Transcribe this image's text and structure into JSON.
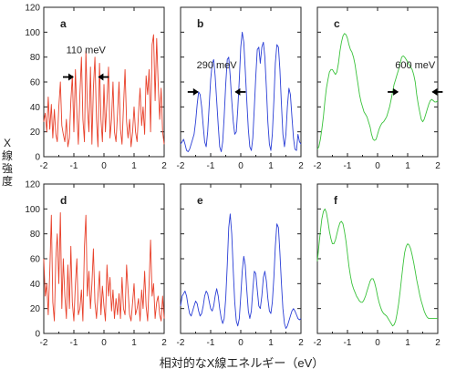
{
  "y_axis_label": "X線強度",
  "x_axis_label": "相対的なX線エネルギー（eV）",
  "colors": {
    "red": "#e8402a",
    "blue": "#2b3fd6",
    "green": "#39c23a",
    "axis": "#222222",
    "arrow": "#000000"
  },
  "chart_data": [
    {
      "panel": "a",
      "type": "line",
      "color": "red",
      "xlim": [
        -2,
        2
      ],
      "ylim": [
        0,
        120
      ],
      "xticks": [
        -2,
        -1,
        0,
        1,
        2
      ],
      "yticks": [
        0,
        20,
        40,
        60,
        80,
        100,
        120
      ],
      "annotation": {
        "text": "110 meV",
        "arrows_at": [
          -1.0,
          -0.2
        ],
        "arrow_y": 64
      },
      "x": [
        -2.0,
        -1.95,
        -1.9,
        -1.85,
        -1.8,
        -1.75,
        -1.7,
        -1.65,
        -1.6,
        -1.55,
        -1.5,
        -1.45,
        -1.4,
        -1.35,
        -1.3,
        -1.25,
        -1.2,
        -1.15,
        -1.1,
        -1.05,
        -1.0,
        -0.95,
        -0.9,
        -0.85,
        -0.8,
        -0.75,
        -0.7,
        -0.65,
        -0.6,
        -0.55,
        -0.5,
        -0.45,
        -0.4,
        -0.35,
        -0.3,
        -0.25,
        -0.2,
        -0.15,
        -0.1,
        -0.05,
        0.0,
        0.05,
        0.1,
        0.15,
        0.2,
        0.25,
        0.3,
        0.35,
        0.4,
        0.45,
        0.5,
        0.55,
        0.6,
        0.65,
        0.7,
        0.75,
        0.8,
        0.85,
        0.9,
        0.95,
        1.0,
        1.05,
        1.1,
        1.15,
        1.2,
        1.25,
        1.3,
        1.35,
        1.4,
        1.45,
        1.5,
        1.55,
        1.6,
        1.65,
        1.7,
        1.75,
        1.8,
        1.85,
        1.9,
        1.95,
        2.0
      ],
      "y": [
        28,
        35,
        20,
        48,
        22,
        42,
        15,
        38,
        18,
        12,
        40,
        60,
        25,
        18,
        12,
        30,
        8,
        15,
        45,
        65,
        20,
        70,
        35,
        10,
        50,
        80,
        30,
        12,
        85,
        40,
        20,
        72,
        10,
        55,
        80,
        30,
        8,
        75,
        30,
        12,
        58,
        20,
        45,
        72,
        15,
        30,
        60,
        20,
        12,
        35,
        60,
        22,
        10,
        40,
        70,
        28,
        15,
        30,
        8,
        20,
        40,
        20,
        12,
        35,
        55,
        25,
        40,
        18,
        65,
        50,
        70,
        20,
        90,
        98,
        45,
        95,
        60,
        30,
        55,
        20,
        10
      ]
    },
    {
      "panel": "b",
      "type": "line",
      "color": "blue",
      "xlim": [
        -2,
        2
      ],
      "ylim": [
        0,
        120
      ],
      "xticks": [
        -2,
        -1,
        0,
        1,
        2
      ],
      "yticks": [
        0,
        20,
        40,
        60,
        80,
        100,
        120
      ],
      "annotation": {
        "text": "290 meV",
        "arrows_at": [
          -1.4,
          -0.2
        ],
        "arrow_y": 52
      },
      "x": [
        -2.0,
        -1.95,
        -1.9,
        -1.85,
        -1.8,
        -1.75,
        -1.7,
        -1.65,
        -1.6,
        -1.55,
        -1.5,
        -1.45,
        -1.4,
        -1.35,
        -1.3,
        -1.25,
        -1.2,
        -1.15,
        -1.1,
        -1.05,
        -1.0,
        -0.95,
        -0.9,
        -0.85,
        -0.8,
        -0.75,
        -0.7,
        -0.65,
        -0.6,
        -0.55,
        -0.5,
        -0.45,
        -0.4,
        -0.35,
        -0.3,
        -0.25,
        -0.2,
        -0.15,
        -0.1,
        -0.05,
        0.0,
        0.05,
        0.1,
        0.15,
        0.2,
        0.25,
        0.3,
        0.35,
        0.4,
        0.45,
        0.5,
        0.55,
        0.6,
        0.65,
        0.7,
        0.75,
        0.8,
        0.85,
        0.9,
        0.95,
        1.0,
        1.05,
        1.1,
        1.15,
        1.2,
        1.25,
        1.3,
        1.35,
        1.4,
        1.45,
        1.5,
        1.55,
        1.6,
        1.65,
        1.7,
        1.75,
        1.8,
        1.85,
        1.9,
        1.95,
        2.0
      ],
      "y": [
        10,
        12,
        14,
        10,
        5,
        4,
        6,
        10,
        14,
        18,
        28,
        42,
        52,
        50,
        40,
        25,
        12,
        8,
        20,
        40,
        62,
        75,
        78,
        65,
        45,
        25,
        8,
        4,
        12,
        32,
        58,
        78,
        80,
        65,
        45,
        28,
        18,
        20,
        38,
        62,
        88,
        100,
        92,
        70,
        45,
        22,
        8,
        5,
        15,
        40,
        65,
        86,
        88,
        75,
        88,
        92,
        80,
        55,
        28,
        10,
        5,
        18,
        45,
        75,
        90,
        88,
        70,
        42,
        18,
        8,
        18,
        40,
        55,
        50,
        32,
        15,
        6,
        5,
        18,
        12,
        10
      ]
    },
    {
      "panel": "c",
      "type": "line",
      "color": "green",
      "xlim": [
        -2,
        2
      ],
      "ylim": [
        0,
        120
      ],
      "xticks": [
        -2,
        -1,
        0,
        1,
        2
      ],
      "yticks": [
        0,
        20,
        40,
        60,
        80,
        100,
        120
      ],
      "annotation": {
        "text": "600 meV",
        "arrows_at": [
          0.7,
          1.8
        ],
        "arrow_y": 52
      },
      "x": [
        -2.0,
        -1.95,
        -1.9,
        -1.85,
        -1.8,
        -1.75,
        -1.7,
        -1.65,
        -1.6,
        -1.55,
        -1.5,
        -1.45,
        -1.4,
        -1.35,
        -1.3,
        -1.25,
        -1.2,
        -1.15,
        -1.1,
        -1.05,
        -1.0,
        -0.95,
        -0.9,
        -0.85,
        -0.8,
        -0.75,
        -0.7,
        -0.65,
        -0.6,
        -0.55,
        -0.5,
        -0.45,
        -0.4,
        -0.35,
        -0.3,
        -0.25,
        -0.2,
        -0.15,
        -0.1,
        -0.05,
        0.0,
        0.05,
        0.1,
        0.15,
        0.2,
        0.25,
        0.3,
        0.35,
        0.4,
        0.45,
        0.5,
        0.55,
        0.6,
        0.65,
        0.7,
        0.75,
        0.8,
        0.85,
        0.9,
        0.95,
        1.0,
        1.05,
        1.1,
        1.15,
        1.2,
        1.25,
        1.3,
        1.35,
        1.4,
        1.45,
        1.5,
        1.55,
        1.6,
        1.65,
        1.7,
        1.75,
        1.8,
        1.85,
        1.9,
        1.95,
        2.0
      ],
      "y": [
        6,
        8,
        14,
        22,
        32,
        45,
        55,
        62,
        68,
        70,
        70,
        68,
        66,
        68,
        75,
        85,
        92,
        97,
        99,
        98,
        95,
        90,
        86,
        84,
        80,
        74,
        66,
        58,
        50,
        44,
        40,
        36,
        34,
        32,
        28,
        24,
        18,
        14,
        13,
        14,
        18,
        22,
        25,
        27,
        28,
        30,
        32,
        36,
        40,
        46,
        52,
        58,
        62,
        66,
        70,
        75,
        80,
        81,
        80,
        78,
        76,
        74,
        72,
        70,
        66,
        60,
        50,
        42,
        36,
        30,
        28,
        30,
        34,
        38,
        42,
        45,
        46,
        45,
        44,
        44,
        45
      ]
    },
    {
      "panel": "d",
      "type": "line",
      "color": "red",
      "xlim": [
        -2,
        2
      ],
      "ylim": [
        0,
        120
      ],
      "xticks": [
        -2,
        -1,
        0,
        1,
        2
      ],
      "yticks": [
        0,
        20,
        40,
        60,
        80,
        100,
        120
      ],
      "x": [
        -2.0,
        -1.95,
        -1.9,
        -1.85,
        -1.8,
        -1.75,
        -1.7,
        -1.65,
        -1.6,
        -1.55,
        -1.5,
        -1.45,
        -1.4,
        -1.35,
        -1.3,
        -1.25,
        -1.2,
        -1.15,
        -1.1,
        -1.05,
        -1.0,
        -0.95,
        -0.9,
        -0.85,
        -0.8,
        -0.75,
        -0.7,
        -0.65,
        -0.6,
        -0.55,
        -0.5,
        -0.45,
        -0.4,
        -0.35,
        -0.3,
        -0.25,
        -0.2,
        -0.15,
        -0.1,
        -0.05,
        0.0,
        0.05,
        0.1,
        0.15,
        0.2,
        0.25,
        0.3,
        0.35,
        0.4,
        0.45,
        0.5,
        0.55,
        0.6,
        0.65,
        0.7,
        0.75,
        0.8,
        0.85,
        0.9,
        0.95,
        1.0,
        1.05,
        1.1,
        1.15,
        1.2,
        1.25,
        1.3,
        1.35,
        1.4,
        1.45,
        1.5,
        1.55,
        1.6,
        1.65,
        1.7,
        1.75,
        1.8,
        1.85,
        1.9,
        1.95,
        2.0
      ],
      "y": [
        60,
        30,
        40,
        15,
        50,
        95,
        25,
        10,
        60,
        80,
        40,
        97,
        20,
        60,
        30,
        12,
        55,
        20,
        70,
        25,
        10,
        40,
        60,
        15,
        20,
        35,
        10,
        70,
        95,
        30,
        50,
        20,
        40,
        68,
        25,
        12,
        30,
        50,
        15,
        38,
        22,
        10,
        55,
        30,
        45,
        18,
        35,
        12,
        28,
        15,
        32,
        12,
        45,
        20,
        15,
        55,
        35,
        15,
        10,
        25,
        40,
        15,
        20,
        28,
        10,
        35,
        20,
        50,
        22,
        10,
        40,
        75,
        30,
        40,
        12,
        25,
        30,
        15,
        10,
        30,
        12
      ]
    },
    {
      "panel": "e",
      "type": "line",
      "color": "blue",
      "xlim": [
        -2,
        2
      ],
      "ylim": [
        0,
        120
      ],
      "xticks": [
        -2,
        -1,
        0,
        1,
        2
      ],
      "yticks": [
        0,
        20,
        40,
        60,
        80,
        100,
        120
      ],
      "x": [
        -2.0,
        -1.95,
        -1.9,
        -1.85,
        -1.8,
        -1.75,
        -1.7,
        -1.65,
        -1.6,
        -1.55,
        -1.5,
        -1.45,
        -1.4,
        -1.35,
        -1.3,
        -1.25,
        -1.2,
        -1.15,
        -1.1,
        -1.05,
        -1.0,
        -0.95,
        -0.9,
        -0.85,
        -0.8,
        -0.75,
        -0.7,
        -0.65,
        -0.6,
        -0.55,
        -0.5,
        -0.45,
        -0.4,
        -0.35,
        -0.3,
        -0.25,
        -0.2,
        -0.15,
        -0.1,
        -0.05,
        0.0,
        0.05,
        0.1,
        0.15,
        0.2,
        0.25,
        0.3,
        0.35,
        0.4,
        0.45,
        0.5,
        0.55,
        0.6,
        0.65,
        0.7,
        0.75,
        0.8,
        0.85,
        0.9,
        0.95,
        1.0,
        1.05,
        1.1,
        1.15,
        1.2,
        1.25,
        1.3,
        1.35,
        1.4,
        1.45,
        1.5,
        1.55,
        1.6,
        1.65,
        1.7,
        1.75,
        1.8,
        1.85,
        1.9,
        1.95,
        2.0
      ],
      "y": [
        22,
        30,
        32,
        34,
        30,
        22,
        16,
        14,
        18,
        22,
        26,
        24,
        18,
        14,
        16,
        22,
        30,
        34,
        32,
        26,
        20,
        18,
        22,
        30,
        36,
        30,
        20,
        12,
        8,
        12,
        28,
        55,
        85,
        96,
        80,
        50,
        25,
        10,
        6,
        12,
        30,
        50,
        62,
        55,
        35,
        18,
        12,
        18,
        35,
        50,
        48,
        35,
        22,
        20,
        30,
        45,
        50,
        42,
        28,
        18,
        16,
        25,
        45,
        70,
        88,
        85,
        65,
        40,
        20,
        8,
        4,
        6,
        10,
        14,
        18,
        20,
        18,
        15,
        12,
        11,
        12
      ]
    },
    {
      "panel": "f",
      "type": "line",
      "color": "green",
      "xlim": [
        -2,
        2
      ],
      "ylim": [
        0,
        120
      ],
      "xticks": [
        -2,
        -1,
        0,
        1,
        2
      ],
      "yticks": [
        0,
        20,
        40,
        60,
        80,
        100,
        120
      ],
      "x": [
        -2.0,
        -1.95,
        -1.9,
        -1.85,
        -1.8,
        -1.75,
        -1.7,
        -1.65,
        -1.6,
        -1.55,
        -1.5,
        -1.45,
        -1.4,
        -1.35,
        -1.3,
        -1.25,
        -1.2,
        -1.15,
        -1.1,
        -1.05,
        -1.0,
        -0.95,
        -0.9,
        -0.85,
        -0.8,
        -0.75,
        -0.7,
        -0.65,
        -0.6,
        -0.55,
        -0.5,
        -0.45,
        -0.4,
        -0.35,
        -0.3,
        -0.25,
        -0.2,
        -0.15,
        -0.1,
        -0.05,
        0.0,
        0.05,
        0.1,
        0.15,
        0.2,
        0.25,
        0.3,
        0.35,
        0.4,
        0.45,
        0.5,
        0.55,
        0.6,
        0.65,
        0.7,
        0.75,
        0.8,
        0.85,
        0.9,
        0.95,
        1.0,
        1.05,
        1.1,
        1.15,
        1.2,
        1.25,
        1.3,
        1.35,
        1.4,
        1.45,
        1.5,
        1.55,
        1.6,
        1.65,
        1.7,
        1.75,
        1.8,
        1.85,
        1.9,
        1.95,
        2.0
      ],
      "y": [
        58,
        70,
        82,
        92,
        98,
        100,
        97,
        90,
        82,
        76,
        72,
        72,
        75,
        80,
        85,
        89,
        90,
        88,
        82,
        74,
        64,
        54,
        46,
        40,
        36,
        33,
        30,
        28,
        26,
        25,
        25,
        27,
        30,
        34,
        38,
        42,
        44,
        44,
        41,
        36,
        30,
        25,
        21,
        18,
        16,
        15,
        14,
        12,
        10,
        8,
        6,
        7,
        10,
        16,
        24,
        34,
        45,
        56,
        65,
        70,
        72,
        71,
        68,
        63,
        57,
        50,
        43,
        37,
        31,
        26,
        22,
        18,
        15,
        13,
        12,
        12,
        12,
        12,
        12,
        12,
        12
      ]
    }
  ]
}
